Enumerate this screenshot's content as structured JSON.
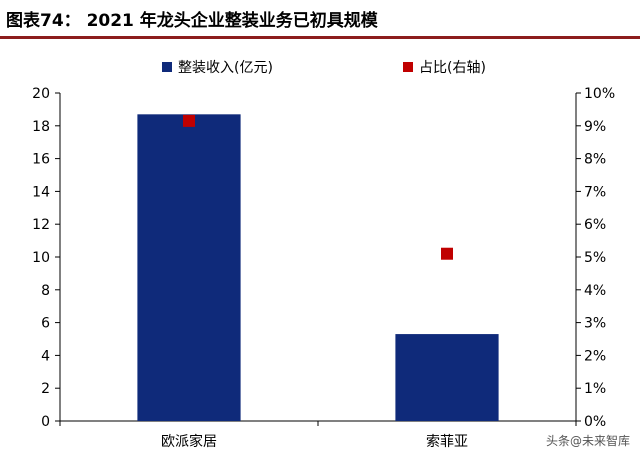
{
  "header": {
    "title": "图表74：  2021 年龙头企业整装业务已初具规模"
  },
  "watermark": "头条@未来智库",
  "colors": {
    "bar": "#0f2a7a",
    "marker": "#c00000",
    "title_rule": "#8c1c1c"
  },
  "chart_data": {
    "type": "bar",
    "categories": [
      "欧派家居",
      "索菲亚"
    ],
    "series": [
      {
        "name": "整装收入(亿元)",
        "kind": "bar",
        "axis": "left",
        "values": [
          18.7,
          5.3
        ]
      },
      {
        "name": "占比(右轴)",
        "kind": "scatter",
        "axis": "right",
        "values": [
          9.15,
          5.1
        ]
      }
    ],
    "ylim": [
      0,
      20
    ],
    "yticks": [
      0,
      2,
      4,
      6,
      8,
      10,
      12,
      14,
      16,
      18,
      20
    ],
    "y2lim": [
      0,
      10
    ],
    "y2ticks": [
      "0%",
      "1%",
      "2%",
      "3%",
      "4%",
      "5%",
      "6%",
      "7%",
      "8%",
      "9%",
      "10%"
    ],
    "legend": "top",
    "grid": false
  }
}
